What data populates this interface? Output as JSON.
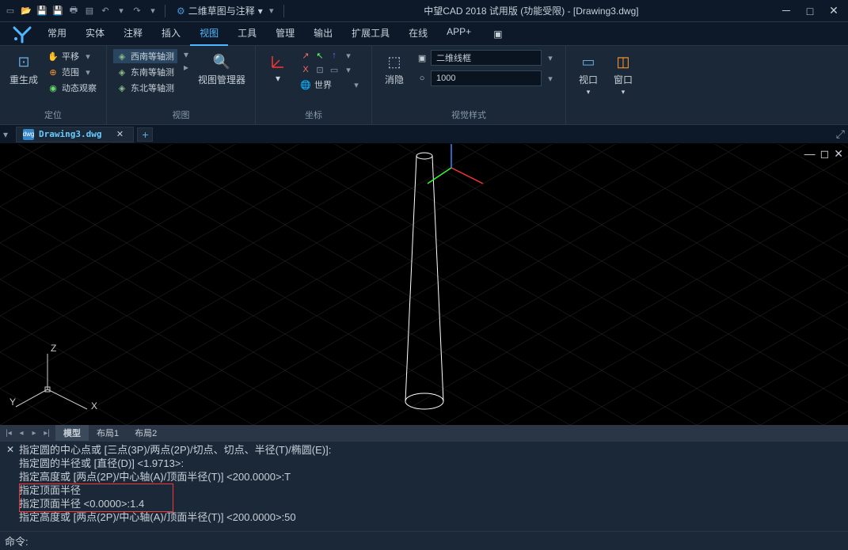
{
  "title": "中望CAD 2018 试用版 (功能受限) - [Drawing3.dwg]",
  "workspace": "二维草图与注释",
  "menu": {
    "items": [
      "常用",
      "实体",
      "注释",
      "插入",
      "视图",
      "工具",
      "管理",
      "输出",
      "扩展工具",
      "在线",
      "APP+"
    ],
    "active_index": 4
  },
  "ribbon": {
    "groups": [
      {
        "label": "定位",
        "regen": "重生成",
        "pan": "平移",
        "fanwei": "范围",
        "dongtai": "动态观察"
      },
      {
        "label": "视图",
        "sw": "西南等轴测",
        "se": "东南等轴测",
        "ne": "东北等轴测",
        "vmgr": "视图管理器"
      },
      {
        "label": "坐标",
        "world": "世界"
      },
      {
        "label": "视觉样式",
        "hide": "消隐",
        "wireframe": "二维线框",
        "value": "1000"
      },
      {
        "label": "",
        "vp": "视口",
        "win": "窗口"
      }
    ]
  },
  "tab": {
    "filename": "Drawing3.dwg"
  },
  "layout_tabs": [
    "模型",
    "布局1",
    "布局2"
  ],
  "ucs": {
    "x": "X",
    "y": "Y",
    "z": "Z"
  },
  "cmd": {
    "lines": [
      "指定圆的中心点或 [三点(3P)/两点(2P)/切点、切点、半径(T)/椭圆(E)]:",
      "指定圆的半径或 [直径(D)] <1.9713>:",
      "指定高度或 [两点(2P)/中心轴(A)/顶面半径(T)] <200.0000>:T",
      "指定顶面半径",
      "指定顶面半径 <0.0000>:1.4",
      "指定高度或 [两点(2P)/中心轴(A)/顶面半径(T)] <200.0000>:50"
    ],
    "prompt": "命令:"
  },
  "colors": {
    "accent": "#4db8ff",
    "grid": "#2a2a2a",
    "x_axis": "#ff3333",
    "y_axis": "#33ff33",
    "z_axis": "#3388ff"
  }
}
